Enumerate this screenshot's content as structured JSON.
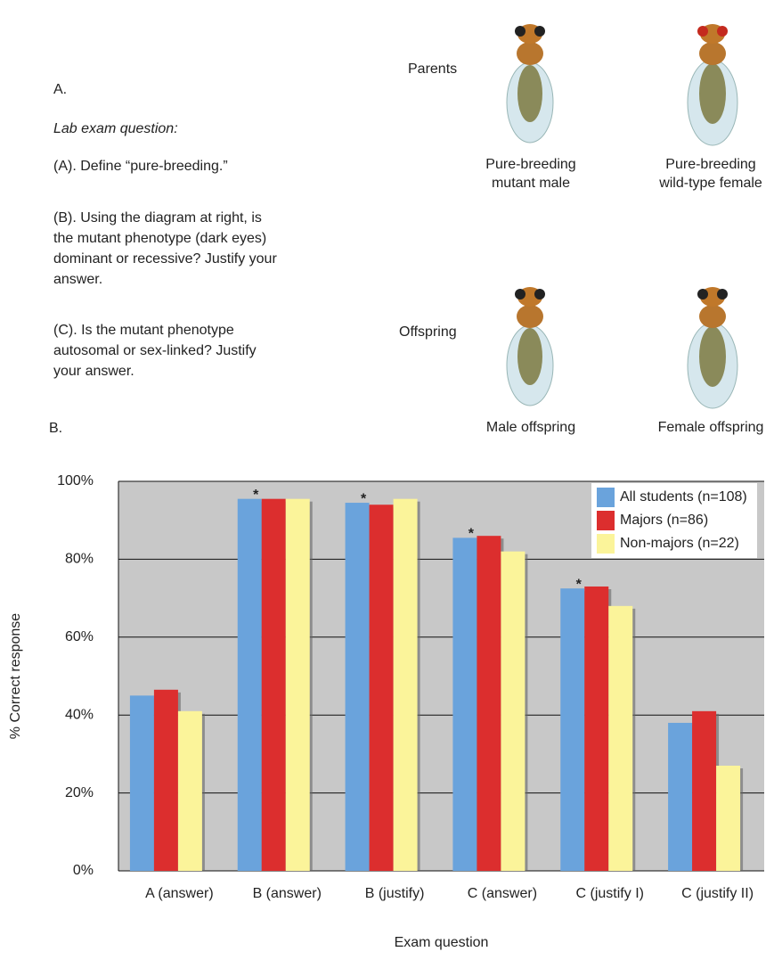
{
  "panel_a": {
    "label": "A.",
    "heading": "Lab exam question:",
    "questions": [
      [
        "(A). Define “pure-breeding.”"
      ],
      [
        "(B). Using the diagram at right, is",
        "the mutant phenotype (dark eyes)",
        "dominant or recessive? Justify your",
        "answer."
      ],
      [
        "(C). Is the mutant phenotype",
        "autosomal or sex-linked? Justify",
        "your answer."
      ]
    ],
    "row_labels": [
      "Parents",
      "Offspring"
    ],
    "captions": [
      [
        "Pure-breeding",
        "mutant male"
      ],
      [
        "Pure-breeding",
        "wild-type female"
      ],
      [
        "Male offspring"
      ],
      [
        "Female offspring"
      ]
    ]
  },
  "chart_data": {
    "type": "bar",
    "panel_label": "B.",
    "x_label": "Exam question",
    "y_label": "% Correct response",
    "categories": [
      "A (answer)",
      "B (answer)",
      "B (justify)",
      "C (answer)",
      "C (justify I)",
      "C (justify II)"
    ],
    "series": [
      {
        "name": "All students (n=108)",
        "color": "#6aa3dc",
        "values": [
          45,
          95.5,
          94.5,
          85.5,
          72.5,
          38
        ]
      },
      {
        "name": "Majors (n=86)",
        "color": "#dc2e2e",
        "values": [
          46.5,
          95.5,
          94,
          86,
          73,
          41
        ]
      },
      {
        "name": "Non-majors (n=22)",
        "color": "#fbf49a",
        "values": [
          41,
          95.5,
          95.5,
          82,
          68,
          27
        ]
      }
    ],
    "markers": [
      null,
      "*",
      "*",
      "*",
      "*",
      null
    ],
    "ylim": [
      0,
      100
    ],
    "yticks": [
      {
        "value": 0,
        "label": "0%"
      },
      {
        "value": 20,
        "label": "20%"
      },
      {
        "value": 40,
        "label": "40%"
      },
      {
        "value": 60,
        "label": "60%"
      },
      {
        "value": 80,
        "label": "80%"
      },
      {
        "value": 100,
        "label": "100%"
      }
    ],
    "grid": true,
    "legend": "top-right",
    "background": "#c8c8c8"
  }
}
